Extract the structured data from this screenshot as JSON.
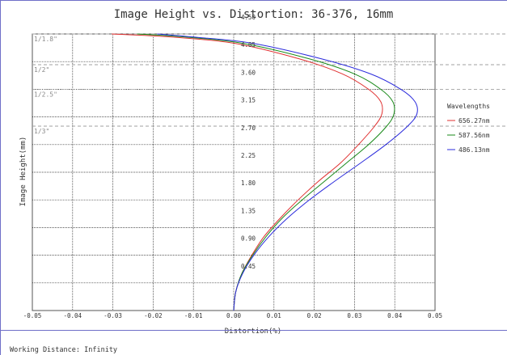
{
  "footer": {
    "working_distance": "Working Distance: Infinity"
  },
  "chart_data": {
    "type": "line",
    "title": "Image Height vs. Distortion: 36-376, 16mm",
    "xlabel": "Distortion(%)",
    "ylabel": "Image Height(mm)",
    "xlim": [
      -0.05,
      0.05
    ],
    "ylim": [
      0,
      4.5
    ],
    "x_ticks": [
      -0.05,
      -0.04,
      -0.03,
      -0.02,
      -0.01,
      0.0,
      0.01,
      0.02,
      0.03,
      0.04,
      0.05
    ],
    "x_tick_labels": [
      "-0.05",
      "-0.04",
      "-0.03",
      "-0.02",
      "-0.01",
      "0.00",
      "0.01",
      "0.02",
      "0.03",
      "0.04",
      "0.05"
    ],
    "y_ticks": [
      0.45,
      0.9,
      1.35,
      1.8,
      2.25,
      2.7,
      3.15,
      3.6,
      4.05,
      4.5
    ],
    "y_tick_labels": [
      "0.45",
      "0.90",
      "1.35",
      "1.80",
      "2.25",
      "2.70",
      "3.15",
      "3.60",
      "4.05",
      "4.50"
    ],
    "grid": true,
    "sensor_markers": [
      {
        "label": "1/1.8\"",
        "y": 4.5
      },
      {
        "label": "1/2\"",
        "y": 4.0
      },
      {
        "label": "1/2.5\"",
        "y": 3.6
      },
      {
        "label": "1/3\"",
        "y": 3.0
      }
    ],
    "legend_title": "Wavelengths",
    "legend_position": "right",
    "series": [
      {
        "name": "656.27nm",
        "color": "#e03030",
        "points": [
          [
            0,
            0
          ],
          [
            0.0005,
            0.3
          ],
          [
            0.002,
            0.6
          ],
          [
            0.0045,
            0.9
          ],
          [
            0.0075,
            1.2
          ],
          [
            0.0115,
            1.5
          ],
          [
            0.016,
            1.8
          ],
          [
            0.021,
            2.1
          ],
          [
            0.0265,
            2.4
          ],
          [
            0.031,
            2.7
          ],
          [
            0.035,
            3.0
          ],
          [
            0.0368,
            3.2
          ],
          [
            0.0365,
            3.4
          ],
          [
            0.0335,
            3.6
          ],
          [
            0.027,
            3.85
          ],
          [
            0.016,
            4.1
          ],
          [
            0.0,
            4.35
          ],
          [
            -0.0155,
            4.45
          ],
          [
            -0.0303,
            4.5
          ]
        ]
      },
      {
        "name": "587.56nm",
        "color": "#1a8a1a",
        "points": [
          [
            0,
            0
          ],
          [
            0.0005,
            0.3
          ],
          [
            0.002,
            0.6
          ],
          [
            0.0047,
            0.9
          ],
          [
            0.008,
            1.2
          ],
          [
            0.012,
            1.5
          ],
          [
            0.017,
            1.8
          ],
          [
            0.0225,
            2.1
          ],
          [
            0.028,
            2.4
          ],
          [
            0.0335,
            2.7
          ],
          [
            0.038,
            3.0
          ],
          [
            0.0398,
            3.2
          ],
          [
            0.0395,
            3.4
          ],
          [
            0.0365,
            3.6
          ],
          [
            0.03,
            3.85
          ],
          [
            0.0185,
            4.1
          ],
          [
            0.002,
            4.35
          ],
          [
            -0.012,
            4.45
          ],
          [
            -0.024,
            4.5
          ]
        ]
      },
      {
        "name": "486.13nm",
        "color": "#2b2bdc",
        "points": [
          [
            0,
            0
          ],
          [
            0.0005,
            0.3
          ],
          [
            0.0022,
            0.6
          ],
          [
            0.005,
            0.9
          ],
          [
            0.0087,
            1.2
          ],
          [
            0.0133,
            1.5
          ],
          [
            0.0188,
            1.8
          ],
          [
            0.025,
            2.1
          ],
          [
            0.0315,
            2.4
          ],
          [
            0.0378,
            2.7
          ],
          [
            0.0432,
            3.0
          ],
          [
            0.0455,
            3.2
          ],
          [
            0.045,
            3.4
          ],
          [
            0.0415,
            3.6
          ],
          [
            0.034,
            3.85
          ],
          [
            0.0215,
            4.1
          ],
          [
            0.0045,
            4.35
          ],
          [
            -0.01,
            4.45
          ],
          [
            -0.019,
            4.5
          ]
        ]
      }
    ]
  }
}
